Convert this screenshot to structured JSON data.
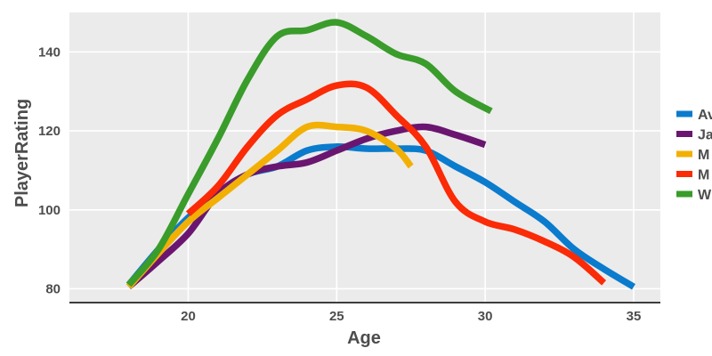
{
  "chart_data": {
    "type": "line",
    "title": "",
    "xlabel": "Age",
    "ylabel": "PlayerRating",
    "xlim": [
      16,
      35.9
    ],
    "ylim": [
      76.5,
      150
    ],
    "xticks": [
      20,
      25,
      30,
      35
    ],
    "yticks": [
      80,
      100,
      120,
      140
    ],
    "grid": true,
    "legend_position": "right",
    "background_color": "#ebebeb",
    "grid_color": "#ffffff",
    "series": [
      {
        "name": "Av",
        "color": "#0a7bcd",
        "x": [
          18,
          19,
          20,
          21,
          22,
          23,
          24,
          25,
          26,
          27,
          28,
          29,
          30,
          31,
          32,
          33,
          34,
          35
        ],
        "y": [
          81,
          90,
          98,
          104,
          109,
          111,
          115,
          116,
          115.5,
          115.5,
          115,
          111,
          107,
          102,
          97,
          90,
          85,
          80.5
        ]
      },
      {
        "name": "Ja",
        "color": "#6a1670",
        "x": [
          18,
          19,
          20,
          21,
          22,
          23,
          24,
          25,
          26,
          27,
          28,
          29,
          30
        ],
        "y": [
          80.5,
          87,
          94,
          104,
          109,
          111,
          112,
          115,
          118,
          120,
          121,
          119,
          116.5
        ]
      },
      {
        "name": "M",
        "color": "#f2b005",
        "x": [
          18,
          19,
          20,
          21,
          22,
          23,
          24,
          25,
          26,
          27,
          27.5
        ],
        "y": [
          80.5,
          89,
          97,
          103,
          109,
          115,
          121,
          121,
          120,
          115.5,
          111
        ]
      },
      {
        "name": "M",
        "color": "#fa2b06",
        "x": [
          20,
          21,
          22,
          23,
          24,
          25,
          26,
          27,
          28,
          29,
          30,
          31,
          32,
          33,
          34
        ],
        "y": [
          99,
          106,
          116,
          124,
          128,
          131.5,
          131,
          124,
          116,
          102,
          97,
          95,
          92,
          88,
          81.5
        ]
      },
      {
        "name": "W",
        "color": "#3a9c2b",
        "x": [
          18,
          19,
          20,
          21,
          22,
          23,
          24,
          25,
          26,
          27,
          28,
          29,
          30.2
        ],
        "y": [
          81,
          90,
          104,
          118,
          133,
          144,
          145.5,
          147.5,
          144,
          139.5,
          137,
          130,
          125
        ]
      }
    ]
  }
}
